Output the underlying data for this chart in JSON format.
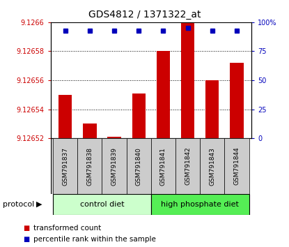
{
  "title": "GDS4812 / 1371322_at",
  "samples": [
    "GSM791837",
    "GSM791838",
    "GSM791839",
    "GSM791840",
    "GSM791841",
    "GSM791842",
    "GSM791843",
    "GSM791844"
  ],
  "transformed_counts": [
    9.12655,
    9.12653,
    9.126521,
    9.126551,
    9.12658,
    9.12662,
    9.12656,
    9.126572
  ],
  "percentile_ranks": [
    93,
    93,
    93,
    93,
    93,
    95,
    93,
    93
  ],
  "ylim_left": [
    9.12652,
    9.1266
  ],
  "ylim_right": [
    0,
    100
  ],
  "yticks_left": [
    9.12652,
    9.12654,
    9.12656,
    9.12658,
    9.1266
  ],
  "ytick_labels_left": [
    "9.12652",
    "9.12654",
    "9.12656",
    "9.12658",
    "9.1266"
  ],
  "yticks_right": [
    0,
    25,
    50,
    75,
    100
  ],
  "ytick_labels_right": [
    "0",
    "25",
    "50",
    "75",
    "100%"
  ],
  "bar_color": "#cc0000",
  "dot_color": "#0000bb",
  "bar_bottom": 9.12652,
  "group1_label": "control diet",
  "group2_label": "high phosphate diet",
  "group1_indices": [
    0,
    1,
    2,
    3
  ],
  "group2_indices": [
    4,
    5,
    6,
    7
  ],
  "group1_color": "#ccffcc",
  "group2_color": "#55ee55",
  "sample_box_color": "#cccccc",
  "legend_red_label": "transformed count",
  "legend_blue_label": "percentile rank within the sample",
  "protocol_label": "protocol"
}
